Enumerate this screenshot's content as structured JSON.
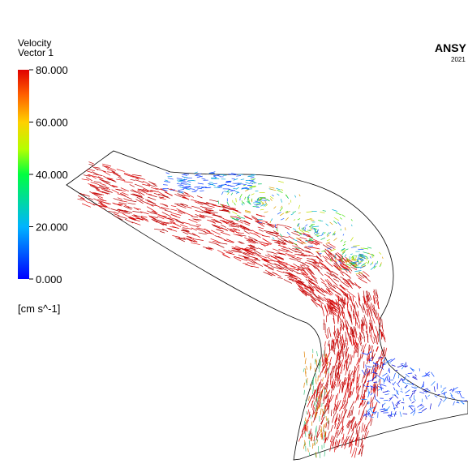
{
  "legend": {
    "title": [
      "Velocity",
      "Vector 1"
    ],
    "ticks": [
      {
        "value": 80,
        "label": "80.000"
      },
      {
        "value": 60,
        "label": "60.000"
      },
      {
        "value": 40,
        "label": "40.000"
      },
      {
        "value": 20,
        "label": "20.000"
      },
      {
        "value": 0,
        "label": "0.000"
      }
    ],
    "range": [
      0,
      80
    ],
    "unit": "[cm s^-1]"
  },
  "logo": {
    "name": "ANSY",
    "version": "2021"
  }
}
